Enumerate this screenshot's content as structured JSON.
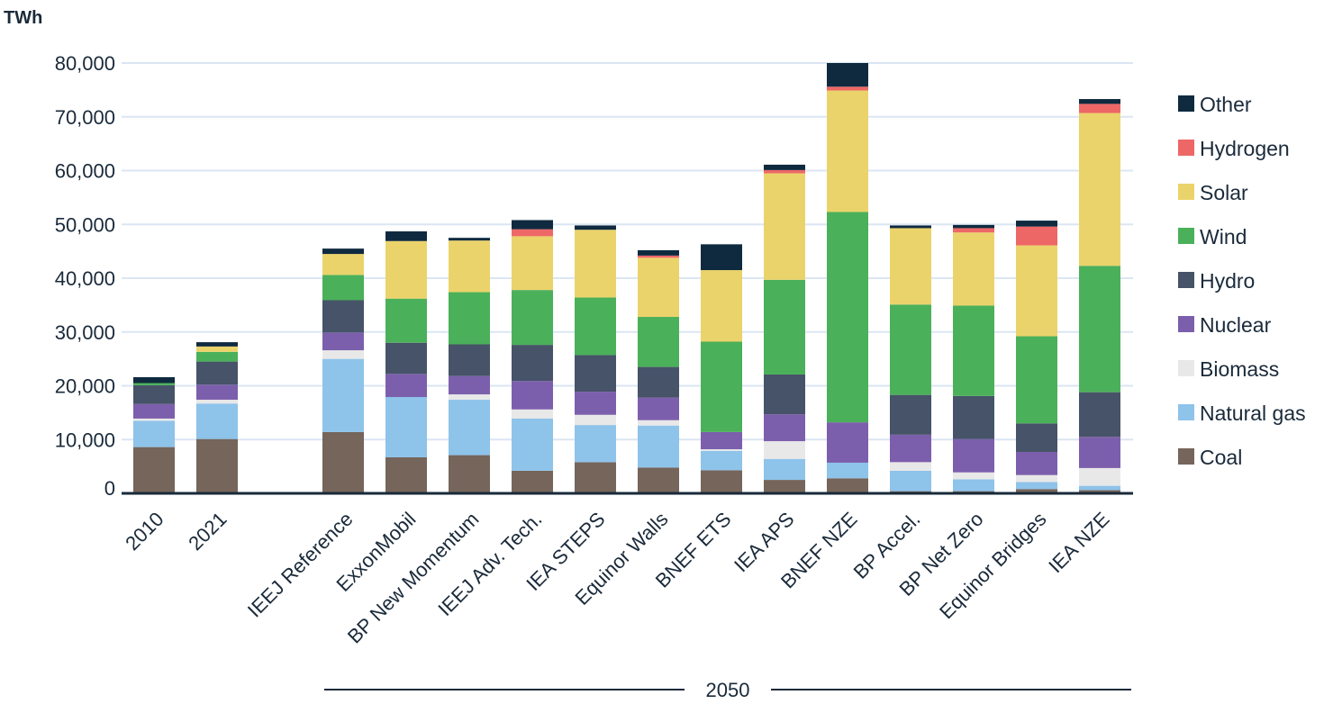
{
  "chart_data": {
    "type": "bar",
    "stacked": true,
    "ylabel": "TWh",
    "ylim": [
      0,
      80000
    ],
    "yticks": [
      0,
      10000,
      20000,
      30000,
      40000,
      50000,
      60000,
      70000,
      80000
    ],
    "ytick_labels": [
      "0",
      "10,000",
      "20,000",
      "30,000",
      "40,000",
      "50,000",
      "60,000",
      "70,000",
      "80,000"
    ],
    "grid": true,
    "legend_position": "right",
    "group_label": "2050",
    "categories": [
      "2010",
      "2021",
      "IEEJ Reference",
      "ExxonMobil",
      "BP New Momentum",
      "IEEJ Adv. Tech.",
      "IEA STEPS",
      "Equinor Walls",
      "BNEF ETS",
      "IEA APS",
      "BNEF NZE",
      "BP Accel.",
      "BP Net Zero",
      "Equinor Bridges",
      "IEA NZE"
    ],
    "series": [
      {
        "name": "Coal",
        "color": "#75655b",
        "values": [
          8600,
          10100,
          11400,
          6700,
          7100,
          4200,
          5800,
          4800,
          4300,
          2500,
          2800,
          400,
          400,
          800,
          600
        ]
      },
      {
        "name": "Natural gas",
        "color": "#8ec3ea",
        "values": [
          4900,
          6600,
          13600,
          11200,
          10300,
          9700,
          6900,
          7800,
          3600,
          3900,
          2900,
          3800,
          2200,
          1300,
          800
        ]
      },
      {
        "name": "Biomass",
        "color": "#e8e8e8",
        "values": [
          400,
          700,
          1600,
          0,
          1000,
          1700,
          1900,
          1000,
          300,
          3300,
          0,
          1600,
          1300,
          1300,
          3300
        ]
      },
      {
        "name": "Nuclear",
        "color": "#7c5fac",
        "values": [
          2700,
          2800,
          3300,
          4300,
          3400,
          5300,
          4300,
          4200,
          3200,
          5000,
          7500,
          5100,
          6200,
          4300,
          5800
        ]
      },
      {
        "name": "Hydro",
        "color": "#465368",
        "values": [
          3500,
          4300,
          6000,
          5800,
          5900,
          6700,
          6800,
          5700,
          0,
          7400,
          0,
          7400,
          8000,
          5300,
          8300
        ]
      },
      {
        "name": "Wind",
        "color": "#4bb05a",
        "values": [
          400,
          1800,
          4700,
          8200,
          9700,
          10200,
          10700,
          9300,
          16800,
          17600,
          39100,
          16800,
          16800,
          16200,
          23500
        ]
      },
      {
        "name": "Solar",
        "color": "#ebd36b",
        "values": [
          0,
          1000,
          3900,
          10700,
          9600,
          10000,
          12600,
          11000,
          13300,
          19800,
          22600,
          14200,
          13600,
          16900,
          28400
        ]
      },
      {
        "name": "Hydrogen",
        "color": "#ee6767",
        "values": [
          0,
          0,
          0,
          0,
          0,
          1300,
          0,
          400,
          0,
          600,
          700,
          0,
          800,
          3500,
          1700
        ]
      },
      {
        "name": "Other",
        "color": "#0f2a3f",
        "values": [
          1100,
          800,
          1000,
          1800,
          500,
          1700,
          800,
          1000,
          4800,
          1000,
          4400,
          500,
          600,
          1100,
          900
        ]
      }
    ]
  }
}
